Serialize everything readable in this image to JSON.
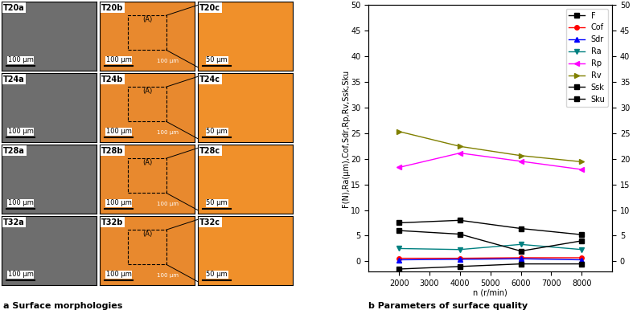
{
  "chart_data": {
    "type": "line",
    "x": [
      2000,
      4000,
      6000,
      8000
    ],
    "x_label": "n (r/min)",
    "y_label": "F(N),Ra(μm),Cof,Sdr,Rp,Rv,Ssk,Sku",
    "xlim": [
      1000,
      9000
    ],
    "xticks": [
      2000,
      3000,
      4000,
      5000,
      6000,
      7000,
      8000
    ],
    "ylim": [
      -2,
      50
    ],
    "yticks": [
      0,
      5,
      10,
      15,
      20,
      25,
      30,
      35,
      40,
      45,
      50
    ],
    "y2lim": [
      -2,
      50
    ],
    "y2ticks": [
      0,
      5,
      10,
      15,
      20,
      25,
      30,
      35,
      40,
      45,
      50
    ],
    "legend": "upper right",
    "series": [
      {
        "name": "F",
        "color": "#000000",
        "marker": "s",
        "values": [
          7.5,
          8.0,
          6.4,
          5.2
        ]
      },
      {
        "name": "Cof",
        "color": "#ff0000",
        "marker": "o",
        "values": [
          0.6,
          0.6,
          0.7,
          0.7
        ]
      },
      {
        "name": "Sdr",
        "color": "#0000ff",
        "marker": "^",
        "values": [
          0.3,
          0.4,
          0.5,
          0.3
        ]
      },
      {
        "name": "Ra",
        "color": "#008080",
        "marker": "v",
        "values": [
          2.5,
          2.3,
          3.3,
          2.3
        ]
      },
      {
        "name": "Rp",
        "color": "#ff00ff",
        "marker": "<",
        "values": [
          18.3,
          21.1,
          19.5,
          17.9
        ]
      },
      {
        "name": "Rv",
        "color": "#808000",
        "marker": ">",
        "values": [
          25.3,
          22.4,
          20.6,
          19.4
        ]
      },
      {
        "name": "Ssk",
        "color": "#000000",
        "marker": "s",
        "values": [
          -1.5,
          -1.0,
          -0.5,
          -0.5
        ]
      },
      {
        "name": "Sku",
        "color": "#000000",
        "marker": "s",
        "values": [
          6.0,
          5.3,
          2.0,
          4.0
        ]
      }
    ]
  },
  "micrographs": {
    "rows": [
      [
        "T20a",
        "T20b",
        "T20c"
      ],
      [
        "T24a",
        "T24b",
        "T24c"
      ],
      [
        "T28a",
        "T28b",
        "T28c"
      ],
      [
        "T32a",
        "T32b",
        "T32c"
      ]
    ],
    "scale_bars": [
      "100 μm",
      "100 μm",
      "50 μm"
    ],
    "region_label": "(A)",
    "region_scale_bar": "100 μm"
  },
  "captions": {
    "a": "a Surface morphologies",
    "b": "b Parameters of surface quality"
  }
}
